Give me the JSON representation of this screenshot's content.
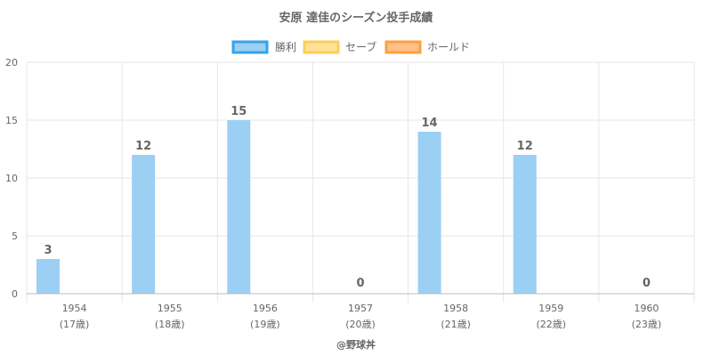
{
  "chart_data": {
    "type": "bar",
    "title": "安原 達佳のシーズン投手成績",
    "categories": [
      "1954",
      "1955",
      "1956",
      "1957",
      "1958",
      "1959",
      "1960"
    ],
    "category_sublabels": [
      "(17歳)",
      "(18歳)",
      "(19歳)",
      "(20歳)",
      "(21歳)",
      "(22歳)",
      "(23歳)"
    ],
    "series": [
      {
        "name": "勝利",
        "values": [
          3,
          12,
          15,
          0,
          14,
          12,
          0
        ],
        "color": "#9ccff4",
        "border": "#36a2eb"
      },
      {
        "name": "セーブ",
        "values": [
          null,
          null,
          null,
          null,
          null,
          null,
          null
        ],
        "color": "#ffe29a",
        "border": "#ffcd56"
      },
      {
        "name": "ホールド",
        "values": [
          null,
          null,
          null,
          null,
          null,
          null,
          null
        ],
        "color": "#ffc08a",
        "border": "#ff9f40"
      }
    ],
    "data_labels": [
      "3",
      "12",
      "15",
      "0",
      "14",
      "12",
      "0"
    ],
    "ylim": [
      0,
      20
    ],
    "yticks": [
      "0",
      "5",
      "10",
      "15",
      "20"
    ],
    "grid": true,
    "legend_position": "top-center",
    "xlabel": "",
    "ylabel": ""
  },
  "credit": "@野球丼"
}
